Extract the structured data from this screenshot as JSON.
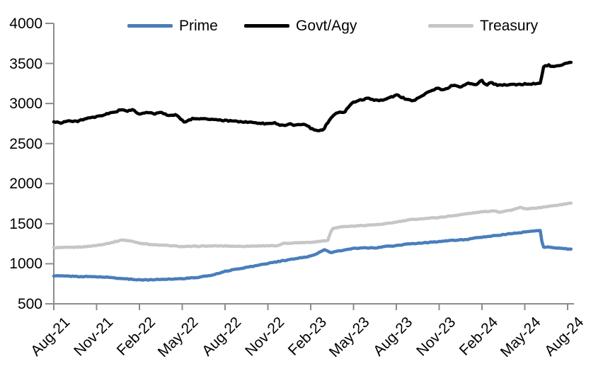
{
  "chart_data": {
    "type": "line",
    "title": "",
    "xlabel": "",
    "ylabel": "",
    "x_unit": "months since Aug-2021",
    "x_tick_labels": [
      "Aug-21",
      "Nov-21",
      "Feb-22",
      "May-22",
      "Aug-22",
      "Nov-22",
      "Feb-23",
      "May-23",
      "Aug-23",
      "Nov-23",
      "Feb-24",
      "May-24",
      "Aug-24"
    ],
    "y_tick_labels": [
      "500",
      "1000",
      "1500",
      "2000",
      "2500",
      "3000",
      "3500",
      "4000"
    ],
    "ylim": [
      500,
      4000
    ],
    "grid": false,
    "legend_position": "top",
    "axis_color": "#8c8c8c",
    "series": [
      {
        "name": "Treasury",
        "color": "#c6c6c6",
        "points": [
          [
            0,
            1200
          ],
          [
            1,
            1203
          ],
          [
            2,
            1210
          ],
          [
            3,
            1228
          ],
          [
            4,
            1262
          ],
          [
            4.8,
            1298
          ],
          [
            5.5,
            1280
          ],
          [
            6,
            1258
          ],
          [
            7,
            1236
          ],
          [
            8,
            1228
          ],
          [
            9,
            1214
          ],
          [
            10,
            1218
          ],
          [
            11,
            1222
          ],
          [
            12,
            1222
          ],
          [
            13,
            1217
          ],
          [
            14,
            1221
          ],
          [
            15,
            1226
          ],
          [
            15.7,
            1221
          ],
          [
            16,
            1252
          ],
          [
            17,
            1262
          ],
          [
            18,
            1268
          ],
          [
            19,
            1288
          ],
          [
            19.2,
            1295
          ],
          [
            19.5,
            1438
          ],
          [
            20,
            1460
          ],
          [
            21,
            1470
          ],
          [
            22,
            1482
          ],
          [
            23,
            1492
          ],
          [
            24,
            1520
          ],
          [
            25,
            1550
          ],
          [
            26,
            1565
          ],
          [
            27,
            1578
          ],
          [
            28,
            1600
          ],
          [
            29,
            1625
          ],
          [
            30,
            1648
          ],
          [
            30.9,
            1662
          ],
          [
            31.2,
            1645
          ],
          [
            32,
            1668
          ],
          [
            32.7,
            1702
          ],
          [
            33.1,
            1682
          ],
          [
            34,
            1700
          ],
          [
            35,
            1724
          ],
          [
            36,
            1750
          ],
          [
            36.3,
            1758
          ]
        ]
      },
      {
        "name": "Prime",
        "color": "#4a7ebb",
        "points": [
          [
            0,
            850
          ],
          [
            1,
            845
          ],
          [
            2,
            840
          ],
          [
            3,
            838
          ],
          [
            4,
            828
          ],
          [
            5,
            812
          ],
          [
            6,
            800
          ],
          [
            6.5,
            798
          ],
          [
            7,
            802
          ],
          [
            8,
            808
          ],
          [
            9,
            815
          ],
          [
            10,
            828
          ],
          [
            11,
            855
          ],
          [
            12,
            905
          ],
          [
            13,
            940
          ],
          [
            14,
            970
          ],
          [
            15,
            1005
          ],
          [
            16,
            1035
          ],
          [
            17,
            1065
          ],
          [
            18,
            1095
          ],
          [
            18.7,
            1150
          ],
          [
            19,
            1175
          ],
          [
            19.4,
            1140
          ],
          [
            20,
            1160
          ],
          [
            21,
            1190
          ],
          [
            22,
            1200
          ],
          [
            22.5,
            1193
          ],
          [
            23,
            1212
          ],
          [
            24,
            1225
          ],
          [
            25,
            1250
          ],
          [
            26,
            1262
          ],
          [
            27,
            1278
          ],
          [
            28,
            1292
          ],
          [
            29,
            1305
          ],
          [
            30,
            1332
          ],
          [
            31,
            1352
          ],
          [
            32,
            1375
          ],
          [
            33,
            1395
          ],
          [
            33.8,
            1412
          ],
          [
            34.1,
            1418
          ],
          [
            34.25,
            1207
          ],
          [
            34.8,
            1207
          ],
          [
            35.3,
            1196
          ],
          [
            36,
            1184
          ],
          [
            36.3,
            1180
          ]
        ]
      },
      {
        "name": "Govt/Agy",
        "color": "#000000",
        "points": [
          [
            0,
            2770
          ],
          [
            0.5,
            2760
          ],
          [
            1,
            2785
          ],
          [
            1.5,
            2772
          ],
          [
            2,
            2800
          ],
          [
            3,
            2832
          ],
          [
            4,
            2882
          ],
          [
            4.8,
            2925
          ],
          [
            5.2,
            2905
          ],
          [
            5.6,
            2920
          ],
          [
            6,
            2862
          ],
          [
            6.5,
            2890
          ],
          [
            7,
            2872
          ],
          [
            7.5,
            2886
          ],
          [
            8,
            2855
          ],
          [
            8.6,
            2860
          ],
          [
            9,
            2790
          ],
          [
            9.2,
            2762
          ],
          [
            9.7,
            2812
          ],
          [
            10.5,
            2812
          ],
          [
            11,
            2800
          ],
          [
            12,
            2786
          ],
          [
            13,
            2775
          ],
          [
            14,
            2760
          ],
          [
            15,
            2746
          ],
          [
            15.5,
            2760
          ],
          [
            16,
            2722
          ],
          [
            16.5,
            2746
          ],
          [
            17,
            2726
          ],
          [
            17.5,
            2750
          ],
          [
            18,
            2692
          ],
          [
            18.5,
            2652
          ],
          [
            18.9,
            2672
          ],
          [
            19,
            2712
          ],
          [
            19.6,
            2855
          ],
          [
            20,
            2900
          ],
          [
            20.3,
            2880
          ],
          [
            21,
            3020
          ],
          [
            21.5,
            3045
          ],
          [
            22,
            3065
          ],
          [
            22.4,
            3038
          ],
          [
            23,
            3045
          ],
          [
            23.6,
            3075
          ],
          [
            24,
            3108
          ],
          [
            24.6,
            3060
          ],
          [
            25,
            3045
          ],
          [
            25.2,
            3035
          ],
          [
            26,
            3122
          ],
          [
            26.5,
            3165
          ],
          [
            27,
            3192
          ],
          [
            27.3,
            3165
          ],
          [
            28,
            3232
          ],
          [
            28.5,
            3200
          ],
          [
            29,
            3262
          ],
          [
            29.5,
            3228
          ],
          [
            30,
            3290
          ],
          [
            30.3,
            3222
          ],
          [
            30.6,
            3260
          ],
          [
            31,
            3232
          ],
          [
            32,
            3235
          ],
          [
            33,
            3242
          ],
          [
            34,
            3252
          ],
          [
            34.15,
            3258
          ],
          [
            34.27,
            3462
          ],
          [
            34.7,
            3478
          ],
          [
            35,
            3455
          ],
          [
            35.5,
            3470
          ],
          [
            36,
            3505
          ],
          [
            36.3,
            3520
          ]
        ]
      }
    ]
  },
  "legend": {
    "items": [
      {
        "label": "Prime",
        "color": "#4a7ebb"
      },
      {
        "label": "Govt/Agy",
        "color": "#000000"
      },
      {
        "label": "Treasury",
        "color": "#c6c6c6"
      }
    ]
  }
}
